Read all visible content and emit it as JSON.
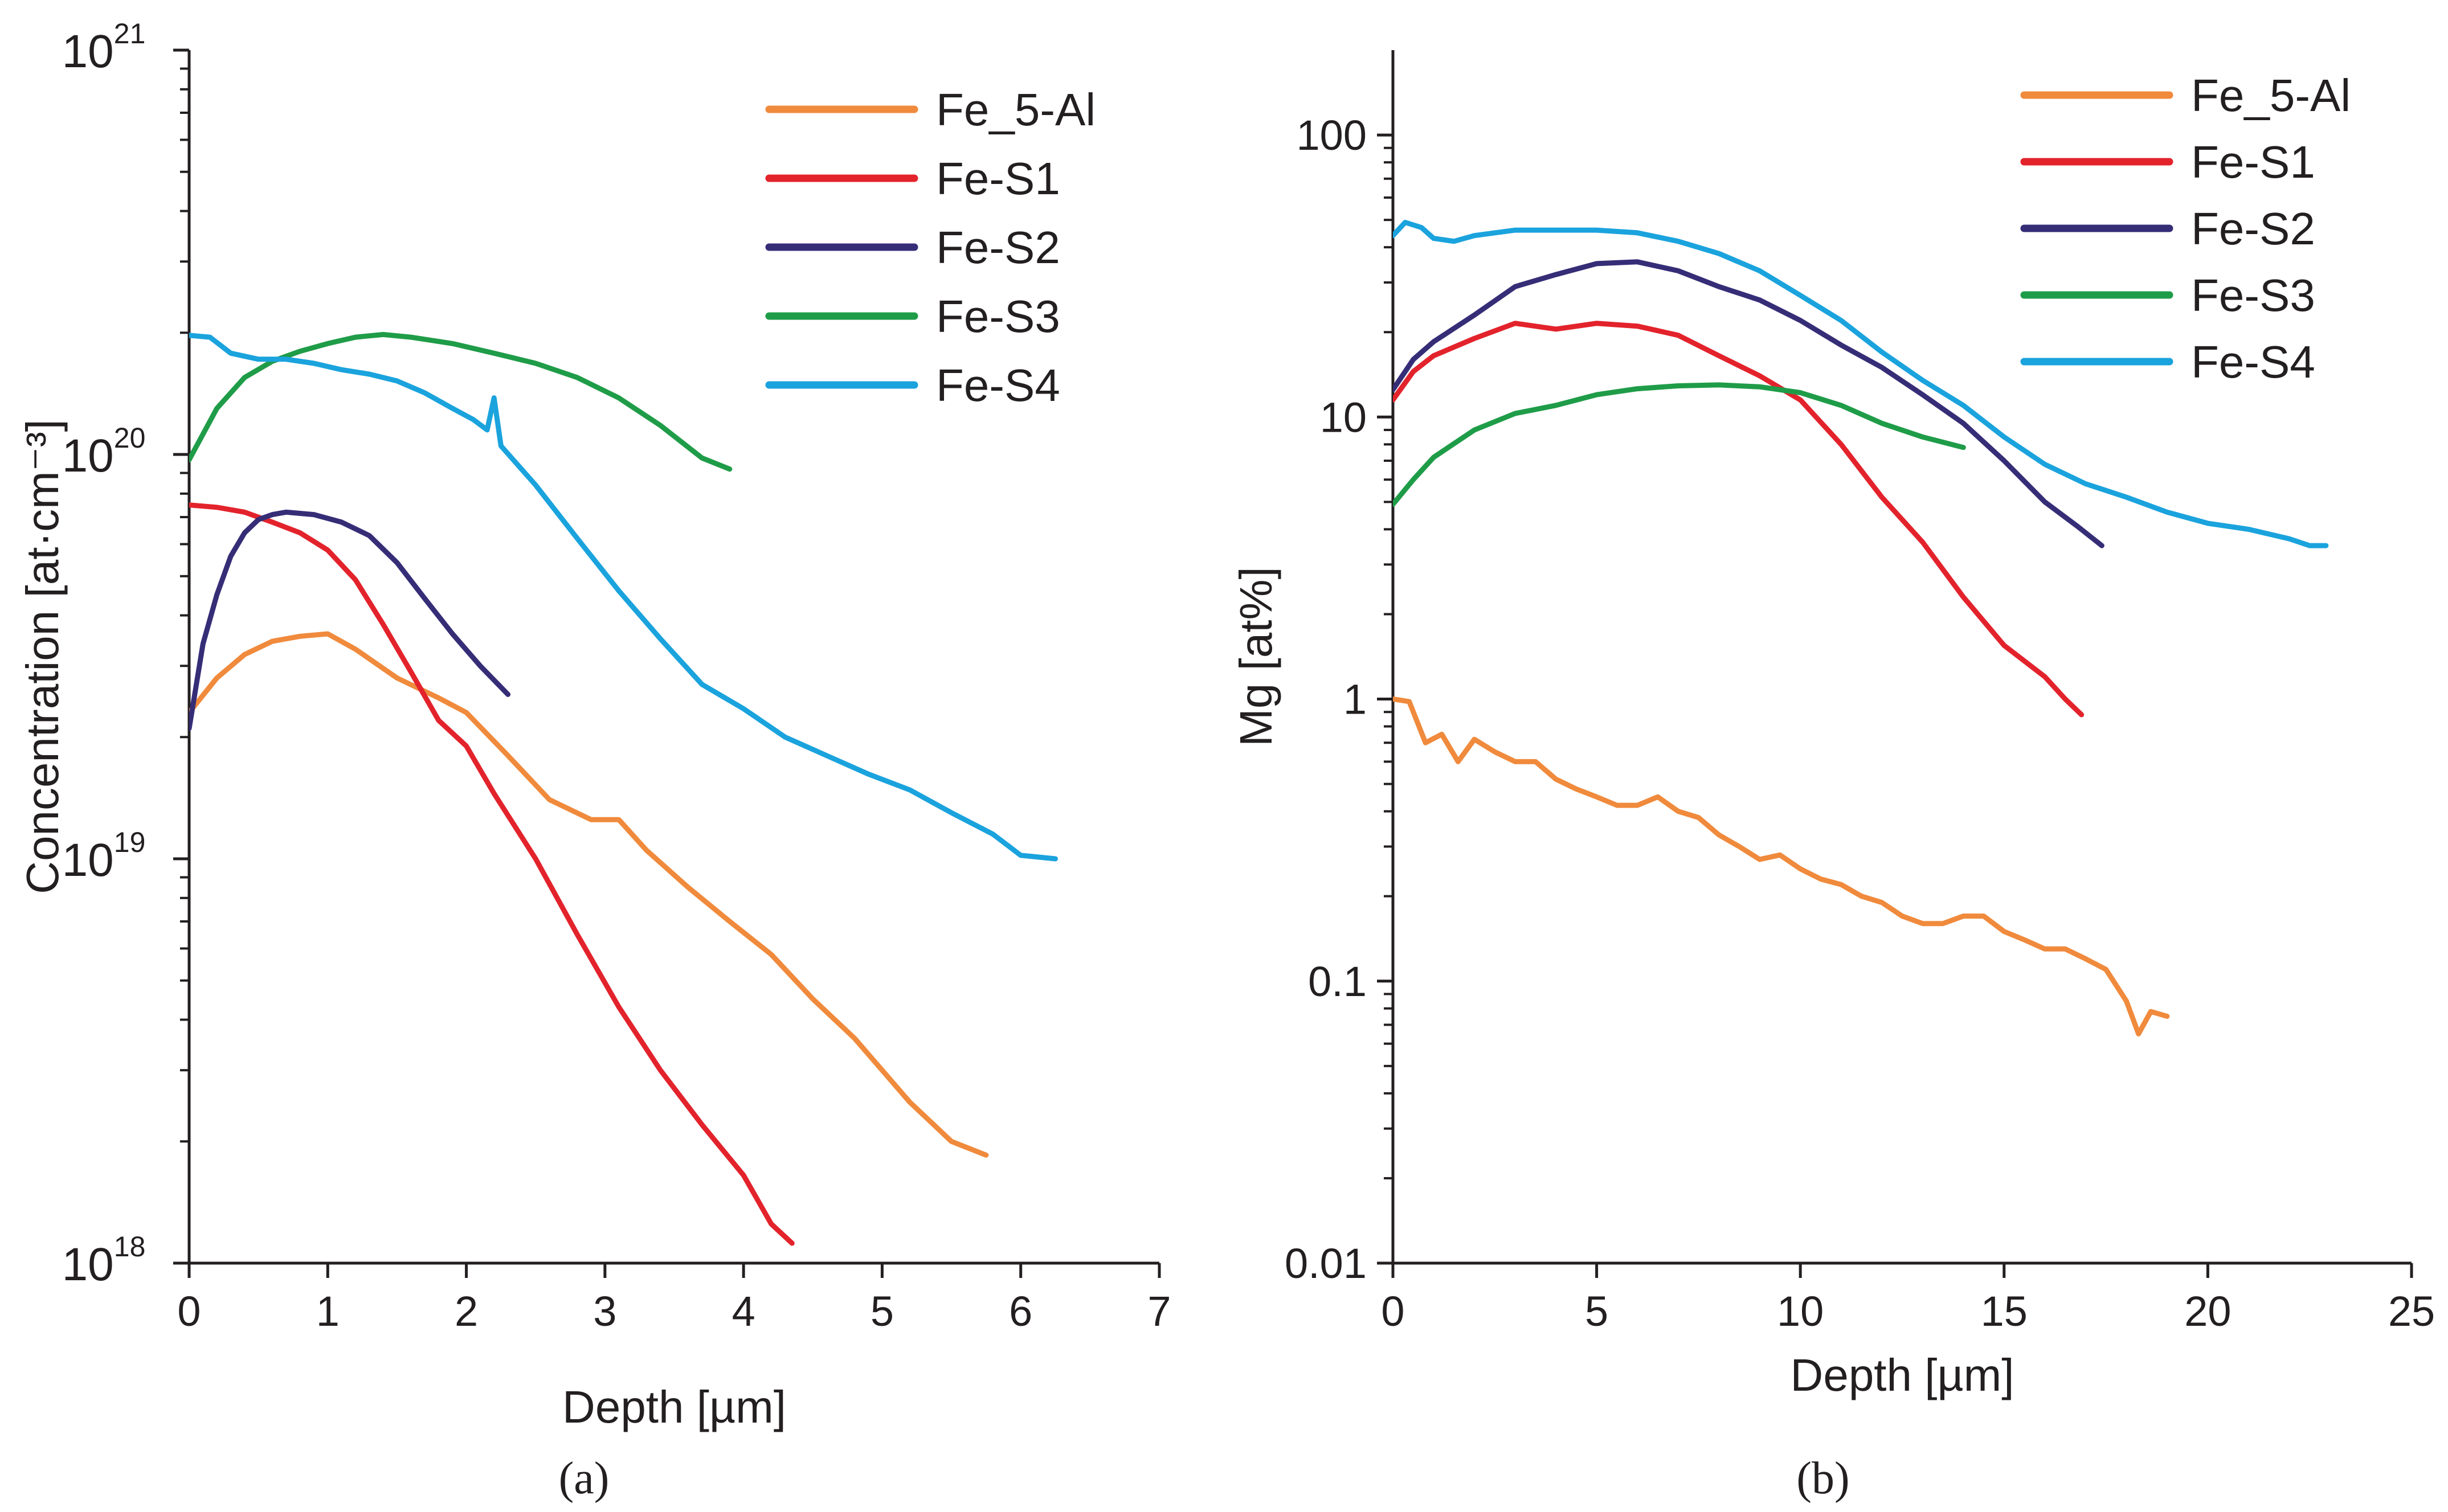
{
  "chart_data": [
    {
      "type": "line",
      "panel_label": "(a)",
      "title": "",
      "xlabel": "Depth [µm]",
      "ylabel": "Concentration [at·cm⁻³]",
      "xlim": [
        0,
        7
      ],
      "ylim": [
        1e+18,
        1e+21
      ],
      "yscale": "log",
      "x_ticks": [
        "0",
        "1",
        "2",
        "3",
        "4",
        "5",
        "6",
        "7"
      ],
      "y_ticks": [
        {
          "base": "10",
          "exp": "18"
        },
        {
          "base": "10",
          "exp": "19"
        },
        {
          "base": "10",
          "exp": "20"
        },
        {
          "base": "10",
          "exp": "21"
        }
      ],
      "legend_position": "top-right",
      "series": [
        {
          "name": "Fe_5-Al",
          "color": "#f08a3c",
          "x": [
            0,
            0.2,
            0.4,
            0.6,
            0.8,
            1.0,
            1.2,
            1.5,
            1.8,
            2.0,
            2.3,
            2.6,
            2.9,
            3.1,
            3.3,
            3.6,
            3.9,
            4.2,
            4.5,
            4.8,
            5.0,
            5.2,
            5.5,
            5.75
          ],
          "y": [
            2.3e+19,
            2.8e+19,
            3.2e+19,
            3.45e+19,
            3.55e+19,
            3.6e+19,
            3.3e+19,
            2.8e+19,
            2.5e+19,
            2.3e+19,
            1.8e+19,
            1.4e+19,
            1.25e+19,
            1.25e+19,
            1.05e+19,
            8.5e+18,
            7e+18,
            5.8e+18,
            4.5e+18,
            3.6e+18,
            3e+18,
            2.5e+18,
            2e+18,
            1.85e+18
          ]
        },
        {
          "name": "Fe-S1",
          "color": "#e3232c",
          "x": [
            0,
            0.2,
            0.4,
            0.6,
            0.8,
            1.0,
            1.2,
            1.4,
            1.6,
            1.8,
            2.0,
            2.2,
            2.5,
            2.8,
            3.1,
            3.4,
            3.7,
            4.0,
            4.2,
            4.35
          ],
          "y": [
            7.5e+19,
            7.4e+19,
            7.2e+19,
            6.8e+19,
            6.4e+19,
            5.8e+19,
            4.9e+19,
            3.8e+19,
            2.9e+19,
            2.2e+19,
            1.9e+19,
            1.45e+19,
            1e+19,
            6.5e+18,
            4.3e+18,
            3e+18,
            2.2e+18,
            1.65e+18,
            1.25e+18,
            1.12e+18
          ]
        },
        {
          "name": "Fe-S2",
          "color": "#362d77",
          "x": [
            0,
            0.1,
            0.2,
            0.3,
            0.4,
            0.5,
            0.6,
            0.7,
            0.9,
            1.1,
            1.3,
            1.5,
            1.7,
            1.9,
            2.1,
            2.3
          ],
          "y": [
            2.1e+19,
            3.4e+19,
            4.5e+19,
            5.6e+19,
            6.4e+19,
            6.9e+19,
            7.1e+19,
            7.2e+19,
            7.1e+19,
            6.8e+19,
            6.3e+19,
            5.4e+19,
            4.4e+19,
            3.6e+19,
            3e+19,
            2.55e+19
          ]
        },
        {
          "name": "Fe-S3",
          "color": "#1f9c48",
          "x": [
            0,
            0.2,
            0.4,
            0.6,
            0.8,
            1.0,
            1.2,
            1.4,
            1.6,
            1.9,
            2.2,
            2.5,
            2.8,
            3.1,
            3.4,
            3.7,
            3.9
          ],
          "y": [
            9.7e+19,
            1.3e+20,
            1.55e+20,
            1.7e+20,
            1.8e+20,
            1.88e+20,
            1.95e+20,
            1.98e+20,
            1.95e+20,
            1.88e+20,
            1.78e+20,
            1.68e+20,
            1.55e+20,
            1.38e+20,
            1.18e+20,
            9.8e+19,
            9.2e+19
          ]
        },
        {
          "name": "Fe-S4",
          "color": "#1aa3dd",
          "x": [
            0,
            0.15,
            0.3,
            0.5,
            0.7,
            0.9,
            1.1,
            1.3,
            1.5,
            1.7,
            1.9,
            2.05,
            2.15,
            2.2,
            2.25,
            2.5,
            2.8,
            3.1,
            3.4,
            3.7,
            4.0,
            4.3,
            4.6,
            4.9,
            5.2,
            5.5,
            5.8,
            6.0,
            6.25
          ],
          "y": [
            1.97e+20,
            1.95e+20,
            1.78e+20,
            1.72e+20,
            1.72e+20,
            1.68e+20,
            1.62e+20,
            1.58e+20,
            1.52e+20,
            1.42e+20,
            1.3e+20,
            1.22e+20,
            1.15e+20,
            1.38e+20,
            1.05e+20,
            8.4e+19,
            6.2e+19,
            4.6e+19,
            3.5e+19,
            2.7e+19,
            2.35e+19,
            2e+19,
            1.8e+19,
            1.62e+19,
            1.48e+19,
            1.3e+19,
            1.15e+19,
            1.02e+19,
            1e+19
          ]
        }
      ]
    },
    {
      "type": "line",
      "panel_label": "(b)",
      "title": "",
      "xlabel": "Depth [µm]",
      "ylabel": "Mg [at%]",
      "xlim": [
        0,
        25
      ],
      "ylim": [
        0.01,
        200
      ],
      "yscale": "log",
      "x_ticks": [
        "0",
        "5",
        "10",
        "15",
        "20",
        "25"
      ],
      "y_ticks": [
        "0.01",
        "0.1",
        "1",
        "10",
        "100"
      ],
      "legend_position": "top-right",
      "series": [
        {
          "name": "Fe_5-Al",
          "color": "#f08a3c",
          "x": [
            0,
            0.4,
            0.8,
            1.2,
            1.6,
            2.0,
            2.5,
            3.0,
            3.5,
            4.0,
            4.5,
            5.0,
            5.5,
            6.0,
            6.5,
            7.0,
            7.5,
            8.0,
            8.5,
            9.0,
            9.5,
            10.0,
            10.5,
            11.0,
            11.5,
            12.0,
            12.5,
            13.0,
            13.5,
            14.0,
            14.5,
            15.0,
            15.5,
            16.0,
            16.5,
            17.0,
            17.5,
            18.0,
            18.3,
            18.6,
            19.0
          ],
          "y": [
            1.0,
            0.98,
            0.7,
            0.75,
            0.6,
            0.72,
            0.65,
            0.6,
            0.6,
            0.52,
            0.48,
            0.45,
            0.42,
            0.42,
            0.45,
            0.4,
            0.38,
            0.33,
            0.3,
            0.27,
            0.28,
            0.25,
            0.23,
            0.22,
            0.2,
            0.19,
            0.17,
            0.16,
            0.16,
            0.17,
            0.17,
            0.15,
            0.14,
            0.13,
            0.13,
            0.12,
            0.11,
            0.085,
            0.065,
            0.078,
            0.075
          ]
        },
        {
          "name": "Fe-S1",
          "color": "#e3232c",
          "x": [
            0,
            0.5,
            1.0,
            2.0,
            3.0,
            4.0,
            5.0,
            6.0,
            7.0,
            8.0,
            9.0,
            10.0,
            11.0,
            12.0,
            13.0,
            14.0,
            15.0,
            16.0,
            16.5,
            16.9
          ],
          "y": [
            11.5,
            14.5,
            16.5,
            19,
            21.5,
            20.5,
            21.5,
            21,
            19.5,
            16.5,
            14,
            11.5,
            8,
            5.2,
            3.6,
            2.3,
            1.55,
            1.2,
            1.0,
            0.88
          ]
        },
        {
          "name": "Fe-S2",
          "color": "#362d77",
          "x": [
            0,
            0.5,
            1.0,
            2.0,
            3.0,
            4.0,
            5.0,
            6.0,
            7.0,
            8.0,
            9.0,
            10.0,
            11.0,
            12.0,
            13.0,
            14.0,
            15.0,
            16.0,
            16.8,
            17.4
          ],
          "y": [
            12.5,
            16,
            18.5,
            23,
            29,
            32,
            35,
            35.5,
            33,
            29,
            26,
            22,
            18,
            15,
            12,
            9.5,
            7,
            5,
            4.1,
            3.5
          ]
        },
        {
          "name": "Fe-S3",
          "color": "#1f9c48",
          "x": [
            0,
            0.5,
            1.0,
            2.0,
            3.0,
            4.0,
            5.0,
            6.0,
            7.0,
            8.0,
            9.0,
            10.0,
            11.0,
            12.0,
            13.0,
            14.0
          ],
          "y": [
            4.9,
            6,
            7.2,
            9,
            10.3,
            11,
            12,
            12.6,
            12.9,
            13,
            12.8,
            12.2,
            11,
            9.5,
            8.5,
            7.8
          ]
        },
        {
          "name": "Fe-S4",
          "color": "#1aa3dd",
          "x": [
            0,
            0.3,
            0.7,
            1.0,
            1.5,
            2.0,
            3.0,
            4.0,
            5.0,
            6.0,
            7.0,
            8.0,
            9.0,
            10.0,
            11.0,
            12.0,
            13.0,
            14.0,
            15.0,
            16.0,
            17.0,
            18.0,
            19.0,
            20.0,
            21.0,
            22.0,
            22.5,
            22.9
          ],
          "y": [
            44,
            49,
            47,
            43,
            42,
            44,
            46,
            46,
            46,
            45,
            42,
            38,
            33,
            27,
            22,
            17,
            13.5,
            11,
            8.5,
            6.8,
            5.8,
            5.2,
            4.6,
            4.2,
            4.0,
            3.7,
            3.5,
            3.5
          ]
        }
      ]
    }
  ]
}
